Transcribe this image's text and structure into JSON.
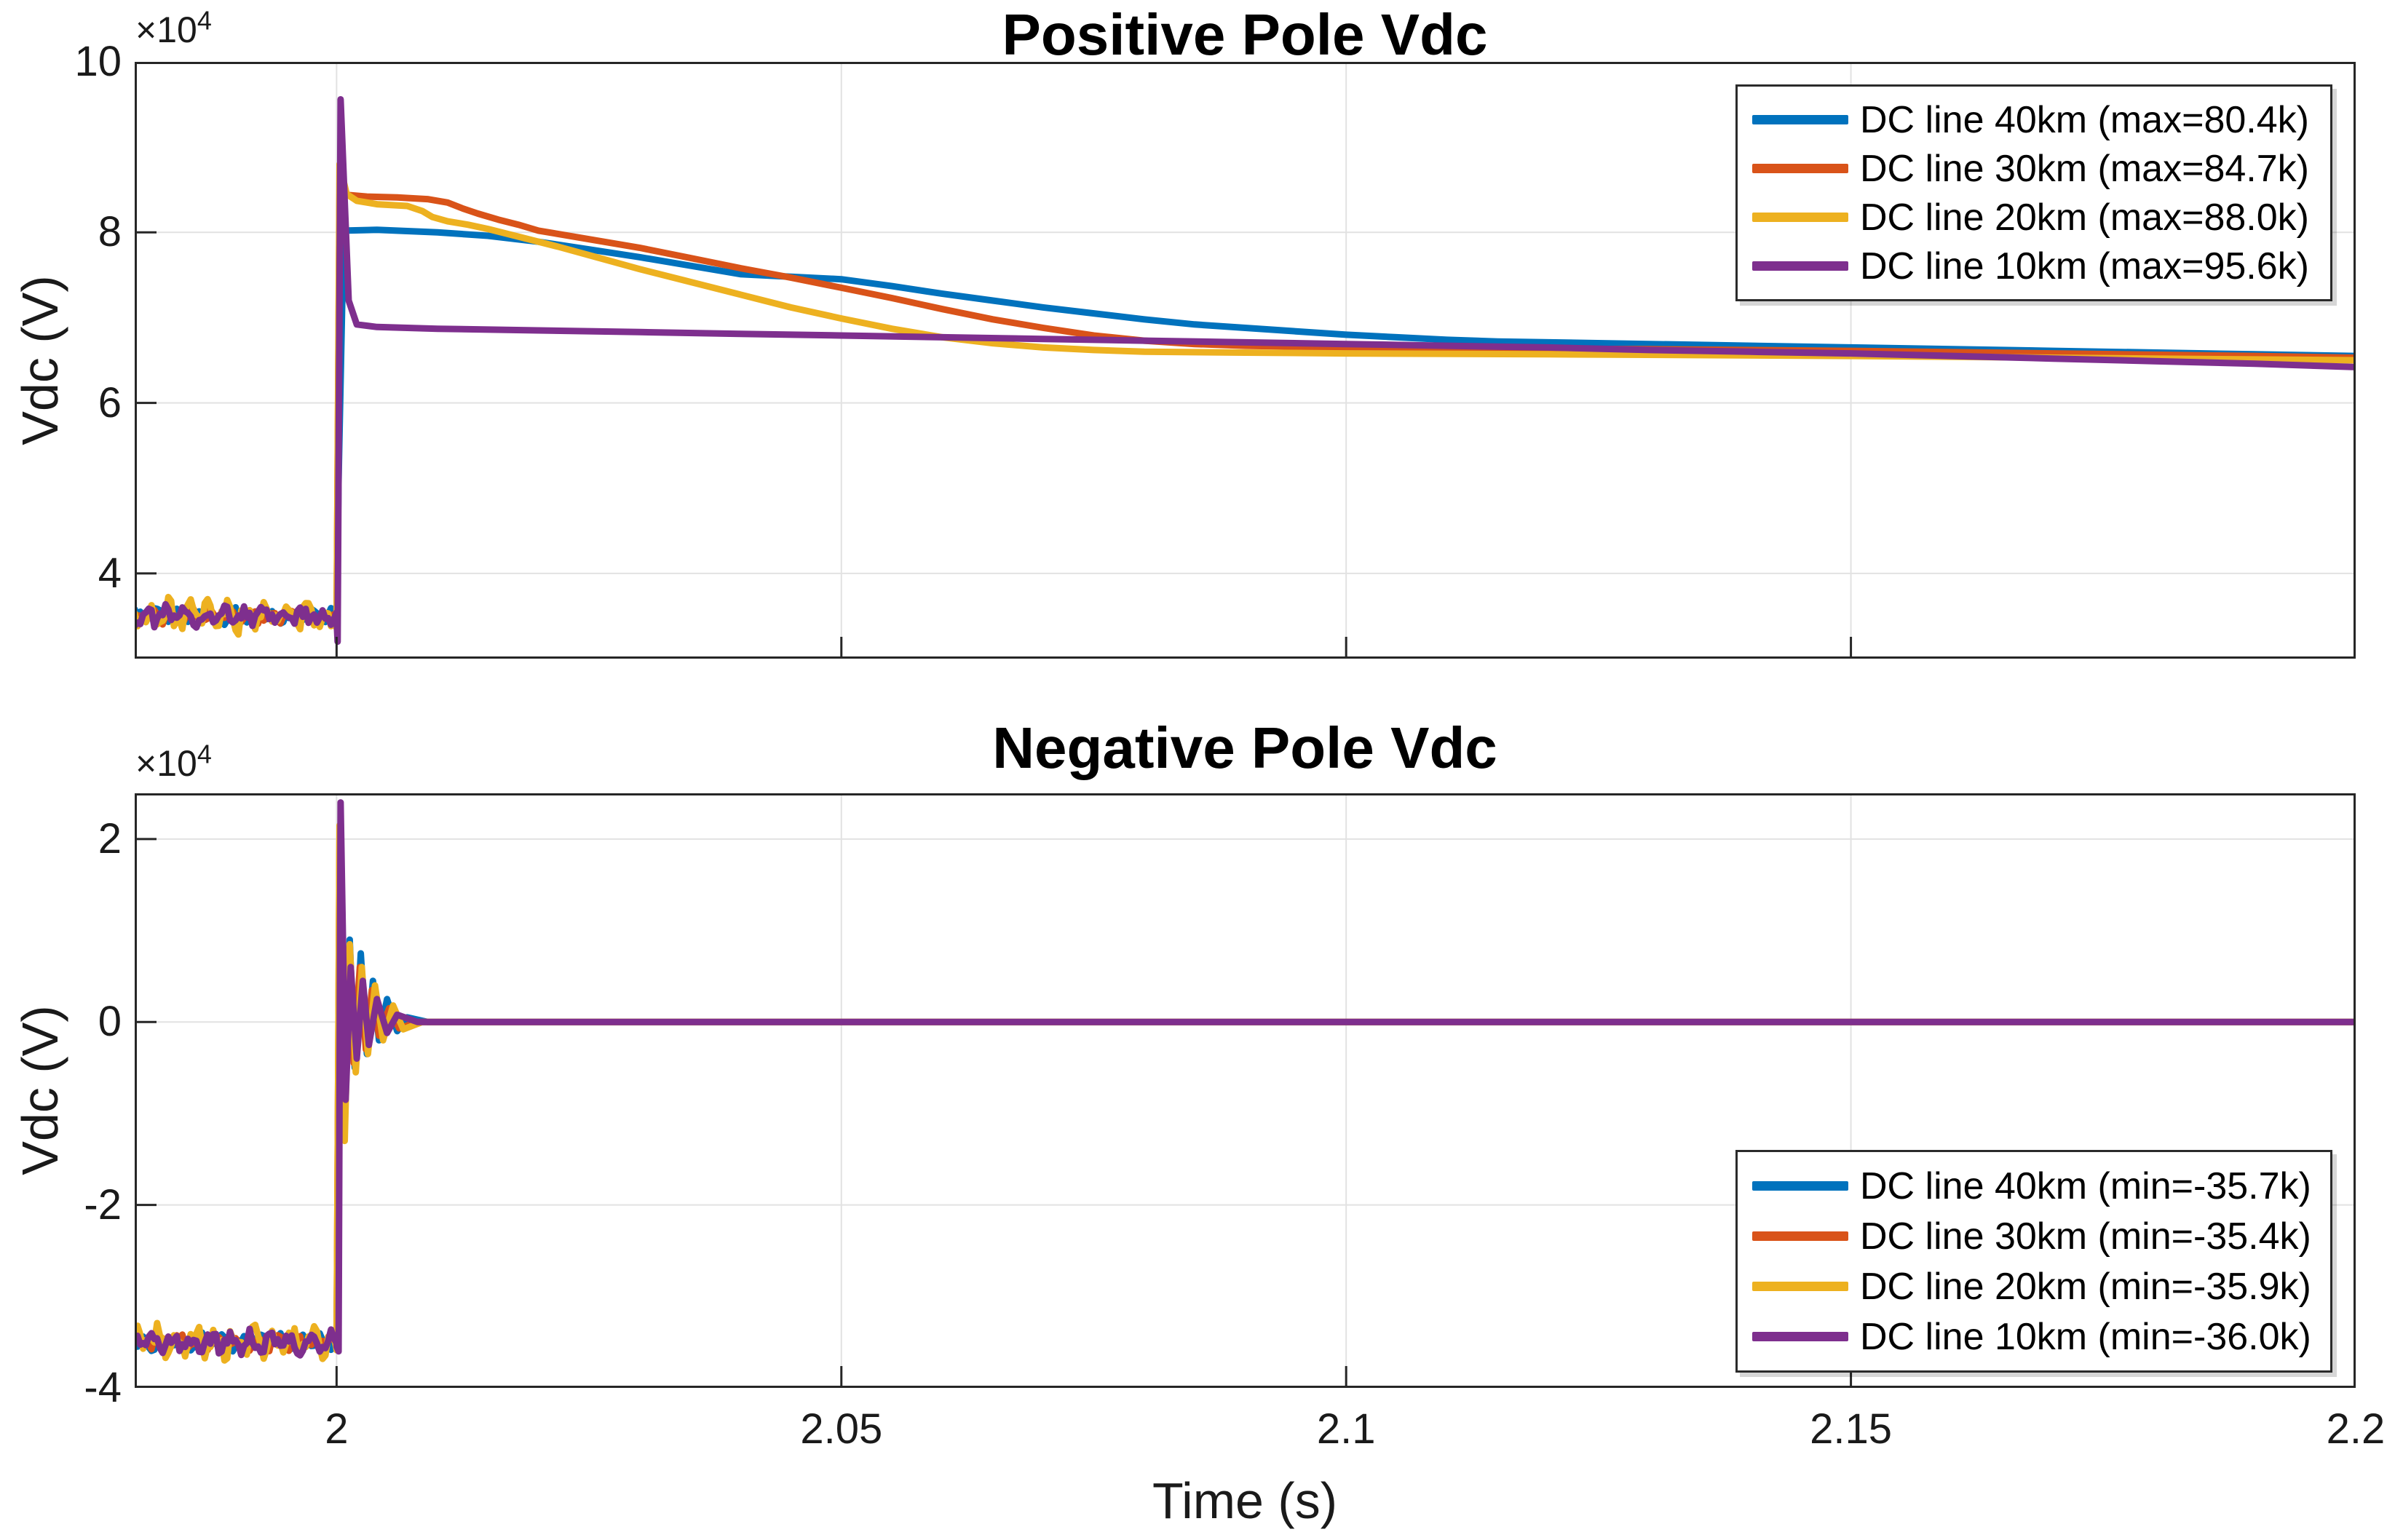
{
  "figure": {
    "background": "#ffffff",
    "axis_color": "#262626",
    "grid_color": "#e2e2e2",
    "text_color": "#1a1a1a",
    "series_colors": {
      "blue": "#0072BD",
      "orange": "#D95319",
      "yellow": "#EDB120",
      "purple": "#7E2F8E"
    }
  },
  "xlabel": "Time (s)",
  "chart_data": [
    {
      "type": "line",
      "title": "Positive Pole Vdc",
      "ylabel": "Vdc (V)",
      "xlabel": "",
      "y_axis_multiplier": {
        "base": "×10",
        "exponent": "4"
      },
      "xlim": [
        1.98,
        2.2
      ],
      "ylim": [
        3,
        10
      ],
      "xticks": [
        2,
        2.05,
        2.1,
        2.15,
        2.2
      ],
      "xticklabels": [
        "2",
        "2.05",
        "2.1",
        "2.15",
        "2.2"
      ],
      "show_xticklabels": false,
      "yticks": [
        4,
        6,
        8,
        10
      ],
      "yticklabels": [
        "4",
        "6",
        "8",
        "10"
      ],
      "grid": true,
      "legend_position": "northeast",
      "value_scale_note": "values in units of 1e4 V",
      "series": [
        {
          "name": "DC line 40km (max=80.4k)",
          "color": "#0072BD",
          "linewidth": 9,
          "pre_fault_noise": {
            "t_start": 1.98,
            "t_end": 2.0,
            "baseline": 3.5,
            "amplitude": 0.09,
            "points": 72,
            "seed": 1
          },
          "points": [
            [
              2.0,
              3.45
            ],
            [
              2.0002,
              5.1
            ],
            [
              2.0007,
              8.02
            ],
            [
              2.004,
              8.03
            ],
            [
              2.01,
              8.0
            ],
            [
              2.015,
              7.96
            ],
            [
              2.02,
              7.89
            ],
            [
              2.025,
              7.8
            ],
            [
              2.03,
              7.71
            ],
            [
              2.035,
              7.61
            ],
            [
              2.04,
              7.51
            ],
            [
              2.045,
              7.48
            ],
            [
              2.05,
              7.45
            ],
            [
              2.055,
              7.37
            ],
            [
              2.06,
              7.28
            ],
            [
              2.065,
              7.2
            ],
            [
              2.07,
              7.12
            ],
            [
              2.075,
              7.05
            ],
            [
              2.08,
              6.98
            ],
            [
              2.085,
              6.92
            ],
            [
              2.09,
              6.88
            ],
            [
              2.095,
              6.84
            ],
            [
              2.1,
              6.8
            ],
            [
              2.105,
              6.77
            ],
            [
              2.11,
              6.74
            ],
            [
              2.115,
              6.72
            ],
            [
              2.13,
              6.69
            ],
            [
              2.15,
              6.65
            ],
            [
              2.17,
              6.61
            ],
            [
              2.19,
              6.57
            ],
            [
              2.2,
              6.55
            ]
          ]
        },
        {
          "name": "DC line 30km (max=84.7k)",
          "color": "#D95319",
          "linewidth": 9,
          "pre_fault_noise": {
            "t_start": 1.98,
            "t_end": 2.0,
            "baseline": 3.5,
            "amplitude": 0.09,
            "points": 72,
            "seed": 2
          },
          "points": [
            [
              2.0,
              3.45
            ],
            [
              2.0003,
              8.47
            ],
            [
              2.001,
              8.44
            ],
            [
              2.003,
              8.42
            ],
            [
              2.006,
              8.41
            ],
            [
              2.009,
              8.39
            ],
            [
              2.011,
              8.35
            ],
            [
              2.0125,
              8.28
            ],
            [
              2.014,
              8.22
            ],
            [
              2.016,
              8.15
            ],
            [
              2.018,
              8.09
            ],
            [
              2.02,
              8.02
            ],
            [
              2.025,
              7.92
            ],
            [
              2.03,
              7.82
            ],
            [
              2.035,
              7.7
            ],
            [
              2.04,
              7.58
            ],
            [
              2.045,
              7.47
            ],
            [
              2.05,
              7.35
            ],
            [
              2.055,
              7.23
            ],
            [
              2.06,
              7.1
            ],
            [
              2.065,
              6.98
            ],
            [
              2.07,
              6.88
            ],
            [
              2.075,
              6.79
            ],
            [
              2.08,
              6.73
            ],
            [
              2.085,
              6.69
            ],
            [
              2.09,
              6.67
            ],
            [
              2.1,
              6.65
            ],
            [
              2.11,
              6.64
            ],
            [
              2.13,
              6.63
            ],
            [
              2.15,
              6.61
            ],
            [
              2.17,
              6.58
            ],
            [
              2.19,
              6.55
            ],
            [
              2.2,
              6.53
            ]
          ]
        },
        {
          "name": "DC line 20km (max=88.0k)",
          "color": "#EDB120",
          "linewidth": 9,
          "pre_fault_noise": {
            "t_start": 1.98,
            "t_end": 2.0,
            "baseline": 3.5,
            "amplitude": 0.19,
            "points": 72,
            "seed": 3
          },
          "points": [
            [
              2.0,
              3.4
            ],
            [
              2.0003,
              8.8
            ],
            [
              2.001,
              8.45
            ],
            [
              2.002,
              8.37
            ],
            [
              2.004,
              8.33
            ],
            [
              2.007,
              8.31
            ],
            [
              2.0085,
              8.25
            ],
            [
              2.0095,
              8.18
            ],
            [
              2.011,
              8.13
            ],
            [
              2.013,
              8.09
            ],
            [
              2.015,
              8.04
            ],
            [
              2.018,
              7.95
            ],
            [
              2.022,
              7.83
            ],
            [
              2.026,
              7.7
            ],
            [
              2.03,
              7.57
            ],
            [
              2.035,
              7.42
            ],
            [
              2.04,
              7.27
            ],
            [
              2.045,
              7.12
            ],
            [
              2.05,
              6.99
            ],
            [
              2.055,
              6.87
            ],
            [
              2.06,
              6.77
            ],
            [
              2.065,
              6.7
            ],
            [
              2.07,
              6.65
            ],
            [
              2.075,
              6.62
            ],
            [
              2.08,
              6.6
            ],
            [
              2.09,
              6.59
            ],
            [
              2.1,
              6.58
            ],
            [
              2.12,
              6.57
            ],
            [
              2.15,
              6.55
            ],
            [
              2.18,
              6.52
            ],
            [
              2.2,
              6.5
            ]
          ]
        },
        {
          "name": "DC line 10km (max=95.6k)",
          "color": "#7E2F8E",
          "linewidth": 9,
          "pre_fault_noise": {
            "t_start": 1.98,
            "t_end": 2.0,
            "baseline": 3.5,
            "amplitude": 0.13,
            "points": 72,
            "seed": 4
          },
          "points": [
            [
              2.0,
              3.45
            ],
            [
              2.0001,
              3.2
            ],
            [
              2.0004,
              9.56
            ],
            [
              2.0012,
              7.2
            ],
            [
              2.002,
              6.92
            ],
            [
              2.004,
              6.89
            ],
            [
              2.01,
              6.87
            ],
            [
              2.02,
              6.85
            ],
            [
              2.03,
              6.83
            ],
            [
              2.04,
              6.81
            ],
            [
              2.05,
              6.79
            ],
            [
              2.06,
              6.77
            ],
            [
              2.07,
              6.75
            ],
            [
              2.08,
              6.73
            ],
            [
              2.09,
              6.71
            ],
            [
              2.1,
              6.69
            ],
            [
              2.11,
              6.67
            ],
            [
              2.12,
              6.65
            ],
            [
              2.13,
              6.62
            ],
            [
              2.14,
              6.6
            ],
            [
              2.15,
              6.58
            ],
            [
              2.16,
              6.55
            ],
            [
              2.17,
              6.52
            ],
            [
              2.18,
              6.49
            ],
            [
              2.19,
              6.46
            ],
            [
              2.2,
              6.42
            ]
          ]
        }
      ]
    },
    {
      "type": "line",
      "title": "Negative Pole Vdc",
      "ylabel": "Vdc (V)",
      "xlabel": "Time (s)",
      "y_axis_multiplier": {
        "base": "×10",
        "exponent": "4"
      },
      "xlim": [
        1.98,
        2.2
      ],
      "ylim": [
        -4,
        2.5
      ],
      "xticks": [
        2,
        2.05,
        2.1,
        2.15,
        2.2
      ],
      "xticklabels": [
        "2",
        "2.05",
        "2.1",
        "2.15",
        "2.2"
      ],
      "show_xticklabels": true,
      "yticks": [
        -4,
        -2,
        0,
        2
      ],
      "yticklabels": [
        "-4",
        "-2",
        "0",
        "2"
      ],
      "grid": true,
      "legend_position": "southeast",
      "value_scale_note": "values in units of 1e4 V",
      "series": [
        {
          "name": "DC line 40km (min=-35.7k)",
          "color": "#0072BD",
          "linewidth": 9,
          "pre_fault_noise": {
            "t_start": 1.98,
            "t_end": 2.0,
            "baseline": -3.5,
            "amplitude": 0.09,
            "points": 72,
            "seed": 5
          },
          "points": [
            [
              2.0,
              -3.5
            ],
            [
              2.0004,
              1.95
            ],
            [
              2.0008,
              -1.15
            ],
            [
              2.0013,
              0.9
            ],
            [
              2.0018,
              -0.5
            ],
            [
              2.0024,
              0.75
            ],
            [
              2.003,
              -0.35
            ],
            [
              2.0036,
              0.45
            ],
            [
              2.0042,
              -0.2
            ],
            [
              2.005,
              0.25
            ],
            [
              2.006,
              -0.1
            ],
            [
              2.007,
              0.05
            ],
            [
              2.009,
              0.0
            ],
            [
              2.2,
              0.0
            ]
          ]
        },
        {
          "name": "DC line 30km (min=-35.4k)",
          "color": "#D95319",
          "linewidth": 9,
          "pre_fault_noise": {
            "t_start": 1.98,
            "t_end": 2.0,
            "baseline": -3.5,
            "amplitude": 0.09,
            "points": 72,
            "seed": 6
          },
          "points": [
            [
              2.0,
              -3.5
            ],
            [
              2.0003,
              2.05
            ],
            [
              2.0007,
              -1.0
            ],
            [
              2.0012,
              0.8
            ],
            [
              2.0017,
              -0.45
            ],
            [
              2.0023,
              0.6
            ],
            [
              2.0029,
              -0.3
            ],
            [
              2.0035,
              0.35
            ],
            [
              2.0042,
              -0.15
            ],
            [
              2.0052,
              0.15
            ],
            [
              2.0062,
              -0.07
            ],
            [
              2.008,
              0.0
            ],
            [
              2.2,
              0.0
            ]
          ]
        },
        {
          "name": "DC line 20km (min=-35.9k)",
          "color": "#EDB120",
          "linewidth": 9,
          "pre_fault_noise": {
            "t_start": 1.98,
            "t_end": 2.0,
            "baseline": -3.5,
            "amplitude": 0.19,
            "points": 72,
            "seed": 7
          },
          "points": [
            [
              2.0,
              -3.55
            ],
            [
              2.0003,
              2.15
            ],
            [
              2.0008,
              -1.3
            ],
            [
              2.0013,
              0.85
            ],
            [
              2.0019,
              -0.55
            ],
            [
              2.0025,
              0.6
            ],
            [
              2.0031,
              -0.35
            ],
            [
              2.0038,
              0.4
            ],
            [
              2.0046,
              -0.2
            ],
            [
              2.0056,
              0.18
            ],
            [
              2.0066,
              -0.08
            ],
            [
              2.0085,
              0.0
            ],
            [
              2.2,
              0.0
            ]
          ]
        },
        {
          "name": "DC line 10km (min=-36.0k)",
          "color": "#7E2F8E",
          "linewidth": 9,
          "pre_fault_noise": {
            "t_start": 1.98,
            "t_end": 2.0,
            "baseline": -3.5,
            "amplitude": 0.13,
            "points": 72,
            "seed": 8
          },
          "points": [
            [
              2.0,
              -3.55
            ],
            [
              2.0002,
              -3.6
            ],
            [
              2.0004,
              2.4
            ],
            [
              2.0009,
              -0.85
            ],
            [
              2.0014,
              0.6
            ],
            [
              2.002,
              -0.4
            ],
            [
              2.0026,
              0.45
            ],
            [
              2.0032,
              -0.25
            ],
            [
              2.004,
              0.25
            ],
            [
              2.005,
              -0.12
            ],
            [
              2.006,
              0.08
            ],
            [
              2.008,
              0.0
            ],
            [
              2.2,
              0.0
            ]
          ]
        }
      ]
    }
  ]
}
